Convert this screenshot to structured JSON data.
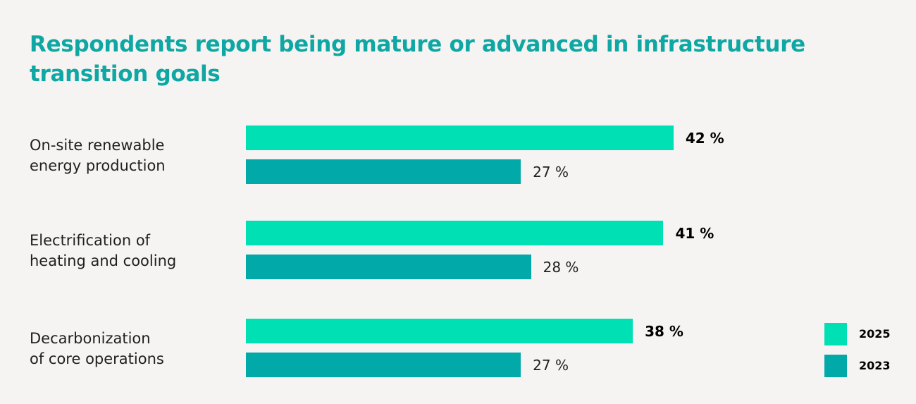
{
  "title": "Respondents report being mature or advanced in infrastructure transition goals",
  "colors": {
    "title": "#0ea7a4",
    "series_2025": "#00e0b5",
    "series_2023": "#02a9a9",
    "background": "#f6f4f2"
  },
  "chart_data": {
    "type": "bar",
    "orientation": "horizontal",
    "title": "Respondents report being mature or advanced in infrastructure transition goals",
    "categories": [
      [
        "On-site renewable",
        "energy production"
      ],
      [
        "Electrification of",
        "heating and cooling"
      ],
      [
        "Decarbonization",
        "of core operations"
      ]
    ],
    "series": [
      {
        "name": "2025",
        "values": [
          42,
          41,
          38
        ],
        "labels": [
          "42 %",
          "41 %",
          "38 %"
        ]
      },
      {
        "name": "2023",
        "values": [
          27,
          28,
          27
        ],
        "labels": [
          "27 %",
          "28 %",
          "27 %"
        ]
      }
    ],
    "xlim": [
      0,
      100
    ],
    "unit": "%",
    "grid": false,
    "legend_position": "bottom-right"
  }
}
